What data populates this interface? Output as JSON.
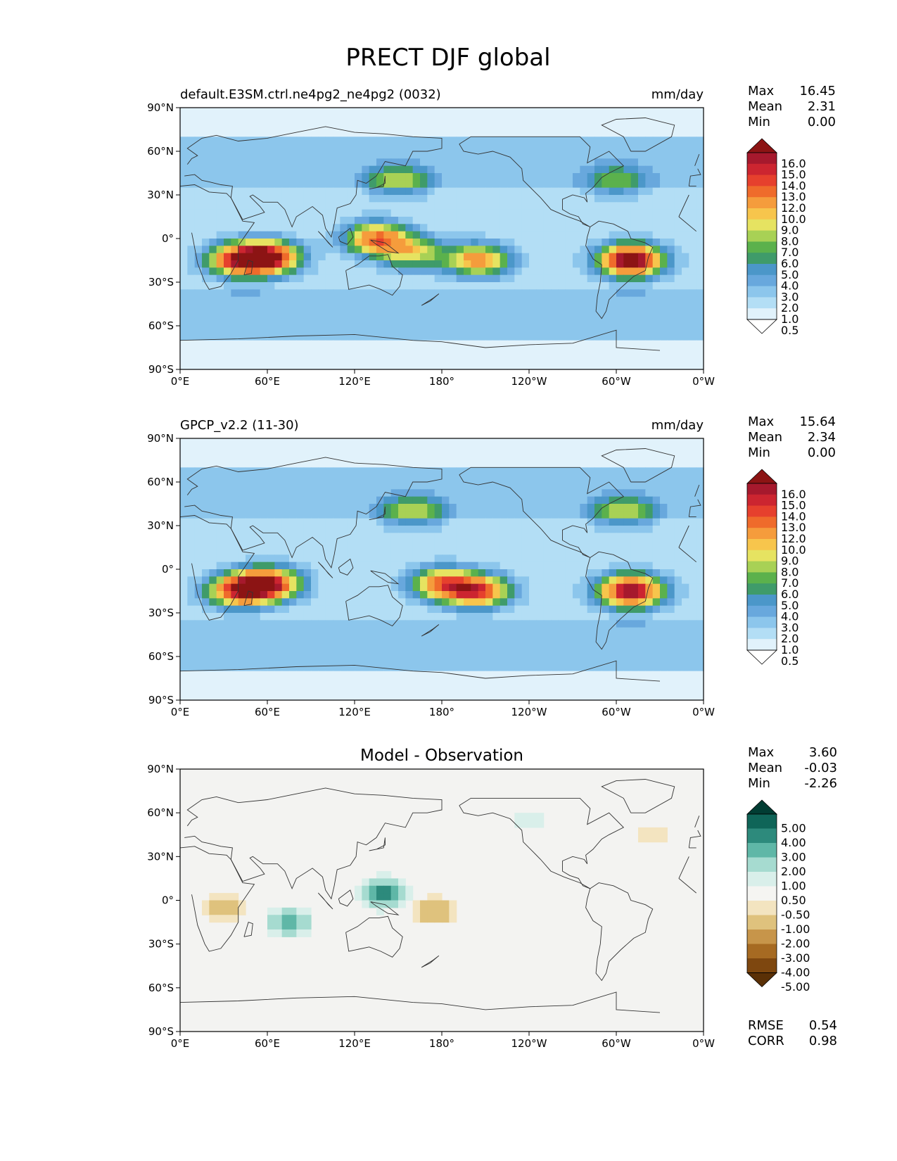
{
  "title": "PRECT DJF global",
  "x_ticks": [
    "0°E",
    "60°E",
    "120°E",
    "180°",
    "120°W",
    "60°W",
    "0°W"
  ],
  "y_ticks": [
    "90°N",
    "60°N",
    "30°N",
    "0°",
    "30°S",
    "60°S",
    "90°S"
  ],
  "colors": {
    "prect": [
      "#ffffff",
      "#e1f2fb",
      "#b3def5",
      "#8cc6ec",
      "#68a8dd",
      "#4b97c9",
      "#3f9b6a",
      "#5bb14c",
      "#a8d155",
      "#e6e361",
      "#f7c54c",
      "#f59c3c",
      "#ef6b2b",
      "#e6402d",
      "#cc2530",
      "#a6192d",
      "#8c1414"
    ],
    "diff": [
      "#5a3006",
      "#7e470f",
      "#a66a22",
      "#c7954a",
      "#dfc27d",
      "#f3e4c0",
      "#f5f5f2",
      "#d9efea",
      "#a6dbd0",
      "#5fb7a7",
      "#2d8a7c",
      "#0f6558",
      "#013d33"
    ],
    "ocean_diff_bg": "#f3f3f1"
  },
  "chart_data": [
    {
      "type": "heatmap",
      "title": "default.E3SM.ctrl.ne4pg2_ne4pg2 (0032)",
      "units": "mm/day",
      "stats": [
        {
          "label": "Max",
          "value": "16.45"
        },
        {
          "label": "Mean",
          "value": "2.31"
        },
        {
          "label": "Min",
          "value": "0.00"
        }
      ],
      "colorbar_levels": [
        "0.5",
        "1.0",
        "2.0",
        "3.0",
        "4.0",
        "5.0",
        "6.0",
        "7.0",
        "8.0",
        "9.0",
        "10.0",
        "12.0",
        "13.0",
        "14.0",
        "15.0",
        "16.0"
      ],
      "xlim": [
        0,
        360
      ],
      "ylim": [
        -90,
        90
      ],
      "features": [
        {
          "lon": 60,
          "lat": -13,
          "value": 14.5
        },
        {
          "lon": 40,
          "lat": -15,
          "value": 11
        },
        {
          "lon": 135,
          "lat": 0,
          "value": 11
        },
        {
          "lon": 160,
          "lat": -10,
          "value": 7
        },
        {
          "lon": 205,
          "lat": -15,
          "value": 10
        },
        {
          "lon": 310,
          "lat": -15,
          "value": 16.4
        },
        {
          "lon": 150,
          "lat": 40,
          "value": 6
        },
        {
          "lon": 300,
          "lat": 40,
          "value": 5
        }
      ]
    },
    {
      "type": "heatmap",
      "title": "GPCP_v2.2 (11-30)",
      "units": "mm/day",
      "stats": [
        {
          "label": "Max",
          "value": "15.64"
        },
        {
          "label": "Mean",
          "value": "2.34"
        },
        {
          "label": "Min",
          "value": "0.00"
        }
      ],
      "colorbar_levels": [
        "0.5",
        "1.0",
        "2.0",
        "3.0",
        "4.0",
        "5.0",
        "6.0",
        "7.0",
        "8.0",
        "9.0",
        "10.0",
        "12.0",
        "13.0",
        "14.0",
        "15.0",
        "16.0"
      ],
      "xlim": [
        0,
        360
      ],
      "ylim": [
        -90,
        90
      ],
      "features": [
        {
          "lon": 60,
          "lat": -10,
          "value": 14
        },
        {
          "lon": 40,
          "lat": -15,
          "value": 11
        },
        {
          "lon": 180,
          "lat": -10,
          "value": 10
        },
        {
          "lon": 205,
          "lat": -15,
          "value": 12
        },
        {
          "lon": 310,
          "lat": -15,
          "value": 15.6
        },
        {
          "lon": 160,
          "lat": 40,
          "value": 6
        },
        {
          "lon": 305,
          "lat": 40,
          "value": 6
        }
      ]
    },
    {
      "type": "heatmap",
      "title": "Model - Observation",
      "units": "",
      "stats": [
        {
          "label": "Max",
          "value": "3.60"
        },
        {
          "label": "Mean",
          "value": "-0.03"
        },
        {
          "label": "Min",
          "value": "-2.26"
        }
      ],
      "colorbar_levels": [
        "-5.00",
        "-4.00",
        "-3.00",
        "-2.00",
        "-1.00",
        "-0.50",
        "0.50",
        "1.00",
        "2.00",
        "3.00",
        "4.00",
        "5.00"
      ],
      "xlim": [
        0,
        360
      ],
      "ylim": [
        -90,
        90
      ],
      "features": [
        {
          "lon": 140,
          "lat": 5,
          "value": 3.6
        },
        {
          "lon": 75,
          "lat": -15,
          "value": 2.5
        },
        {
          "lon": 175,
          "lat": -7,
          "value": -2
        },
        {
          "lon": 30,
          "lat": -5,
          "value": -1.5
        },
        {
          "lon": 325,
          "lat": 45,
          "value": -1
        },
        {
          "lon": 240,
          "lat": 55,
          "value": 1
        }
      ],
      "footer_stats": [
        {
          "label": "RMSE",
          "value": "0.54"
        },
        {
          "label": "CORR",
          "value": "0.98"
        }
      ]
    }
  ]
}
